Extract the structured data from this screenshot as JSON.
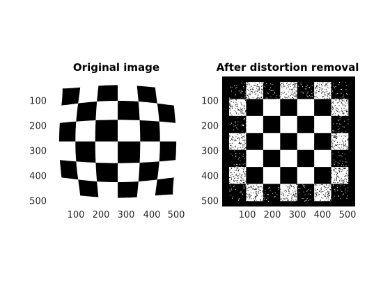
{
  "figure": {
    "panels": [
      {
        "title": "Original image",
        "y_ticks": [
          "100",
          "200",
          "300",
          "400",
          "500"
        ],
        "x_ticks": [
          "100",
          "200",
          "300",
          "400",
          "500"
        ]
      },
      {
        "title": "After distortion removal",
        "y_ticks": [
          "100",
          "200",
          "300",
          "400",
          "500"
        ],
        "x_ticks": [
          "100",
          "200",
          "300",
          "400",
          "500"
        ]
      }
    ]
  },
  "colors": {
    "dark": "#000000",
    "light": "#ffffff",
    "tick_text": "#262626"
  }
}
